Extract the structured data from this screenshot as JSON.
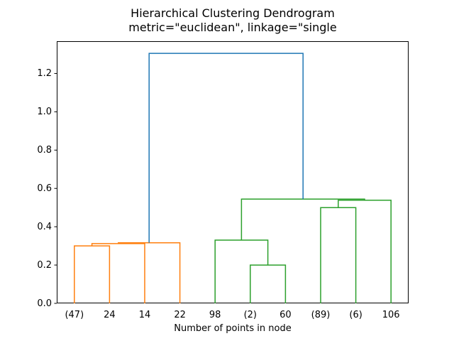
{
  "figure": {
    "title_line1": "Hierarchical Clustering Dendrogram",
    "title_line2": "metric=\"euclidean\", linkage=\"single",
    "xlabel": "Number of points in node"
  },
  "colors": {
    "above_threshold_link": "#1f77b4",
    "cluster1": "#ff7f0e",
    "cluster2": "#2ca02c",
    "spine": "#000000",
    "background": "#ffffff",
    "text": "#000000"
  },
  "chart_data": {
    "type": "dendrogram",
    "title": "Hierarchical Clustering Dendrogram",
    "subtitle": "metric=\"euclidean\", linkage=\"single",
    "xlabel": "Number of points in node",
    "ylabel": "",
    "xlim": [
      0,
      100
    ],
    "ylim": [
      0,
      1.3685
    ],
    "yticks": [
      0.0,
      0.2,
      0.4,
      0.6,
      0.8,
      1.0,
      1.2
    ],
    "grid": false,
    "legend": null,
    "leaves": [
      {
        "label": "(47)",
        "x": 5
      },
      {
        "label": "24",
        "x": 15
      },
      {
        "label": "14",
        "x": 25
      },
      {
        "label": "22",
        "x": 35
      },
      {
        "label": "98",
        "x": 45
      },
      {
        "label": "(2)",
        "x": 55
      },
      {
        "label": "60",
        "x": 65
      },
      {
        "label": "(89)",
        "x": 75
      },
      {
        "label": "(6)",
        "x": 85
      },
      {
        "label": "106",
        "x": 95
      }
    ],
    "links": [
      {
        "x1": 5,
        "y1": 0,
        "x2": 15,
        "y2": 0,
        "height": 0.3,
        "color": "cluster1"
      },
      {
        "x1": 10,
        "y1": 0.3,
        "x2": 25,
        "y2": 0,
        "height": 0.312,
        "color": "cluster1"
      },
      {
        "x1": 17.5,
        "y1": 0.312,
        "x2": 35,
        "y2": 0,
        "height": 0.316,
        "color": "cluster1"
      },
      {
        "x1": 55,
        "y1": 0,
        "x2": 65,
        "y2": 0,
        "height": 0.2,
        "color": "cluster2"
      },
      {
        "x1": 45,
        "y1": 0,
        "x2": 60,
        "y2": 0.2,
        "height": 0.33,
        "color": "cluster2"
      },
      {
        "x1": 75,
        "y1": 0,
        "x2": 85,
        "y2": 0,
        "height": 0.5,
        "color": "cluster2"
      },
      {
        "x1": 80,
        "y1": 0.5,
        "x2": 95,
        "y2": 0,
        "height": 0.538,
        "color": "cluster2"
      },
      {
        "x1": 52.5,
        "y1": 0.33,
        "x2": 87.5,
        "y2": 0.538,
        "height": 0.544,
        "color": "cluster2"
      },
      {
        "x1": 26.25,
        "y1": 0.316,
        "x2": 70,
        "y2": 0.544,
        "height": 1.305,
        "color": "above_threshold_link"
      }
    ]
  }
}
